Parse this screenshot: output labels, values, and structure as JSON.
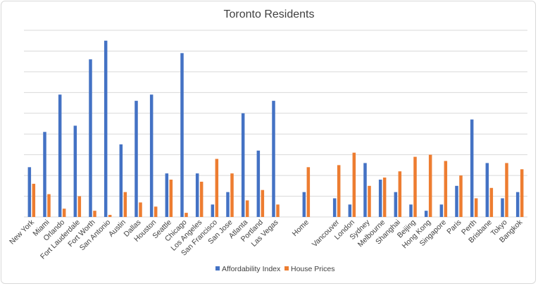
{
  "chart_data": {
    "type": "bar",
    "title": "Toronto Residents",
    "xlabel": "",
    "ylabel": "",
    "ylim": [
      0,
      9
    ],
    "grid": true,
    "y_ticks_visible": false,
    "legend_position": "bottom",
    "categories": [
      "New York",
      "Miami",
      "Orlando",
      "Fort Lauderdale",
      "Fort Worth",
      "San Antonio",
      "Austin",
      "Dallas",
      "Houston",
      "Seattle",
      "Chicago",
      "Los Angeles",
      "San Francisco",
      "San Jose",
      "Atlanta",
      "Portland",
      "Las Vegas",
      "",
      "Home",
      "",
      "Vancouver",
      "London",
      "Sydney",
      "Melbourne",
      "Shanghai",
      "Beijing",
      "Hong Kong",
      "Singapore",
      "Paris",
      "Perth",
      "Brisbane",
      "Tokyo",
      "Bangkok"
    ],
    "series": [
      {
        "name": "Affordability Index",
        "color": "#4472c4",
        "values": [
          2.4,
          4.1,
          5.9,
          4.4,
          7.6,
          8.5,
          3.5,
          5.6,
          5.9,
          2.1,
          7.9,
          2.1,
          0.6,
          1.2,
          5.0,
          3.2,
          5.6,
          null,
          1.2,
          null,
          0.9,
          0.6,
          2.6,
          1.8,
          1.2,
          0.6,
          0.3,
          0.6,
          1.5,
          4.7,
          2.6,
          0.9,
          1.2
        ]
      },
      {
        "name": "House Prices",
        "color": "#ed7d31",
        "values": [
          1.6,
          1.1,
          0.4,
          1.0,
          0.3,
          0.1,
          1.2,
          0.7,
          0.5,
          1.8,
          0.2,
          1.7,
          2.8,
          2.1,
          0.8,
          1.3,
          0.6,
          null,
          2.4,
          null,
          2.5,
          3.1,
          1.5,
          1.9,
          2.2,
          2.9,
          3.0,
          2.7,
          2.0,
          0.9,
          1.4,
          2.6,
          2.3
        ]
      }
    ]
  }
}
